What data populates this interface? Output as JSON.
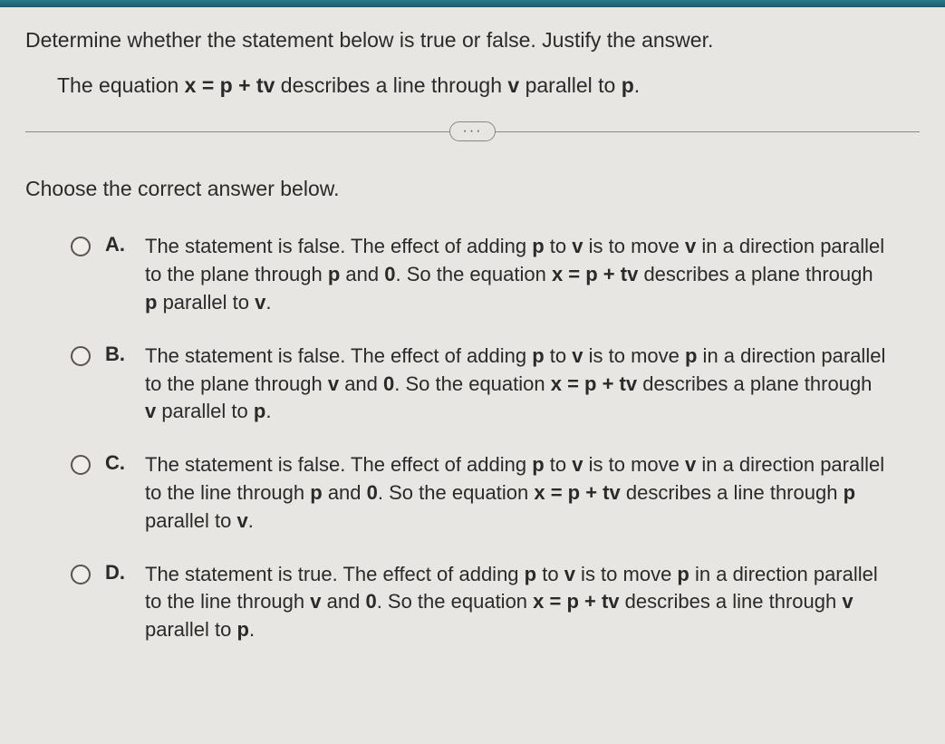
{
  "question": {
    "main": "Determine whether the statement below is true or false. Justify the answer.",
    "statement_prefix": "The equation ",
    "statement_eq": "x = p + tv",
    "statement_mid": " describes a line through ",
    "statement_v": "v",
    "statement_parallel": " parallel to ",
    "statement_p": "p",
    "statement_end": "."
  },
  "divider": "···",
  "prompt": "Choose the correct answer below.",
  "options": [
    {
      "label": "A.",
      "prefix": "The statement is false. The effect of adding ",
      "p1": "p",
      "t1": " to ",
      "v1": "v",
      "t2": " is to move ",
      "v2": "v",
      "t3": " in a direction parallel to the plane through ",
      "p2": "p",
      "t4": " and ",
      "zero": "0",
      "t5": ". So the equation ",
      "eq": "x = p + tv",
      "t6": " describes a plane through ",
      "p3": "p",
      "t7": " parallel to ",
      "v3": "v",
      "t8": "."
    },
    {
      "label": "B.",
      "prefix": "The statement is false. The effect of adding ",
      "p1": "p",
      "t1": " to ",
      "v1": "v",
      "t2": " is to move ",
      "v2": "p",
      "t3": " in a direction parallel to the plane through ",
      "p2": "v",
      "t4": " and ",
      "zero": "0",
      "t5": ". So the equation ",
      "eq": "x = p + tv",
      "t6": " describes a plane through ",
      "p3": "v",
      "t7": " parallel to ",
      "v3": "p",
      "t8": "."
    },
    {
      "label": "C.",
      "prefix": "The statement is false. The effect of adding ",
      "p1": "p",
      "t1": " to ",
      "v1": "v",
      "t2": " is to move ",
      "v2": "v",
      "t3": " in a direction parallel to the line through ",
      "p2": "p",
      "t4": " and ",
      "zero": "0",
      "t5": ". So the equation ",
      "eq": "x = p + tv",
      "t6": " describes a line through ",
      "p3": "p",
      "t7": " parallel to ",
      "v3": "v",
      "t8": "."
    },
    {
      "label": "D.",
      "prefix": "The statement is true. The effect of adding ",
      "p1": "p",
      "t1": " to ",
      "v1": "v",
      "t2": " is to move ",
      "v2": "p",
      "t3": " in a direction parallel to the line through ",
      "p2": "v",
      "t4": " and ",
      "zero": "0",
      "t5": ". So the equation ",
      "eq": "x = p + tv",
      "t6": " describes a line through ",
      "p3": "v",
      "t7": " parallel to ",
      "v3": "p",
      "t8": "."
    }
  ]
}
